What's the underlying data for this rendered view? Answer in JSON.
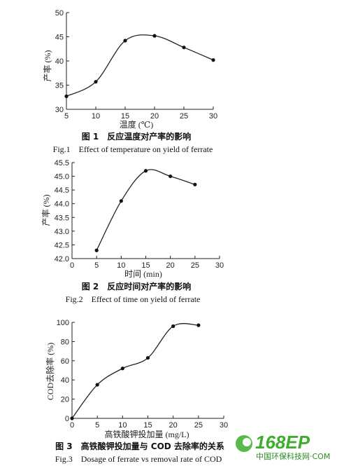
{
  "chart_data": [
    {
      "type": "line",
      "x": [
        5,
        10,
        15,
        20,
        25,
        30
      ],
      "y": [
        32.7,
        35.7,
        44.2,
        45.2,
        42.8,
        40.2
      ],
      "xlim": [
        5,
        30
      ],
      "ylim": [
        30,
        50
      ],
      "xticks": [
        "5",
        "10",
        "15",
        "20",
        "25",
        "30"
      ],
      "yticks": [
        "30",
        "35",
        "40",
        "45",
        "50"
      ],
      "xlabel": "温度 (℃)",
      "ylabel": "产率 (%)",
      "caption_cn": "图 1　反应温度对产率的影响",
      "caption_en": "Fig.1　Effect of temperature on yield of ferrate",
      "grid": false
    },
    {
      "type": "line",
      "x": [
        5,
        10,
        15,
        20,
        25
      ],
      "y": [
        42.3,
        44.1,
        45.2,
        45.0,
        44.7
      ],
      "xlim": [
        0,
        30
      ],
      "ylim": [
        42.0,
        45.5
      ],
      "xticks": [
        "0",
        "5",
        "10",
        "15",
        "20",
        "25",
        "30"
      ],
      "yticks": [
        "42.0",
        "42.5",
        "43.0",
        "43.5",
        "44.0",
        "44.5",
        "45.0",
        "45.5"
      ],
      "xlabel": "时间 (min)",
      "ylabel": "产率 (%)",
      "caption_cn": "图 2　反应时间对产率的影响",
      "caption_en": "Fig.2　Effect of time on yield of ferrate",
      "grid": false
    },
    {
      "type": "line",
      "x": [
        0,
        5,
        10,
        15,
        20,
        25
      ],
      "y": [
        0,
        35,
        52,
        63,
        96,
        97
      ],
      "xlim": [
        0,
        30
      ],
      "ylim": [
        0,
        100
      ],
      "xticks": [
        "0",
        "5",
        "10",
        "15",
        "20",
        "25",
        "30"
      ],
      "yticks": [
        "0",
        "20",
        "40",
        "60",
        "80",
        "100"
      ],
      "xlabel": "高铁酸钾投加量 (mg/L)",
      "ylabel": "COD去除率 (%)",
      "caption_cn": "图 3　高铁酸钾投加量与 COD 去除率的关系",
      "caption_en": "Fig.3　Dosage of ferrate vs removal rate of COD",
      "grid": false
    }
  ],
  "watermark": {
    "brand": "168EP",
    "text": "中国环保科技网·COM",
    "color": "#3cae2c"
  }
}
